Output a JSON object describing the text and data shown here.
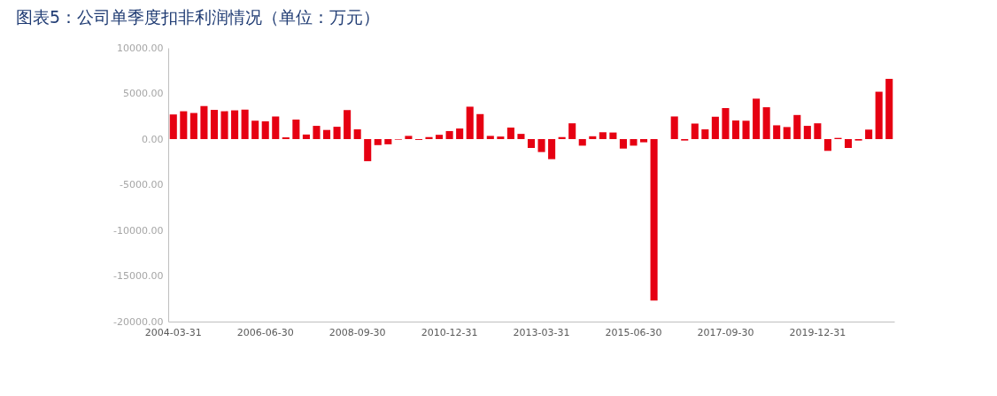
{
  "chart_data": {
    "type": "bar",
    "title": "图表5：公司单季度扣非利润情况（单位：万元）",
    "categories": [
      "2004-03-31",
      null,
      null,
      null,
      null,
      null,
      null,
      null,
      null,
      "2006-06-30",
      null,
      null,
      null,
      null,
      null,
      null,
      null,
      null,
      "2008-09-30",
      null,
      null,
      null,
      null,
      null,
      null,
      null,
      null,
      "2010-12-31",
      null,
      null,
      null,
      null,
      null,
      null,
      null,
      null,
      "2013-03-31",
      null,
      null,
      null,
      null,
      null,
      null,
      null,
      null,
      "2015-06-30",
      null,
      null,
      null,
      null,
      null,
      null,
      null,
      null,
      "2017-09-30",
      null,
      null,
      null,
      null,
      null,
      null,
      null,
      null,
      "2019-12-31",
      null,
      null,
      null,
      null,
      null,
      null,
      null
    ],
    "values": [
      2700,
      3050,
      2860,
      3620,
      3200,
      3050,
      3150,
      3240,
      2010,
      1950,
      2480,
      190,
      2140,
      500,
      1450,
      1000,
      1350,
      3180,
      1070,
      -2420,
      -660,
      -570,
      -60,
      350,
      -90,
      220,
      470,
      880,
      1160,
      3550,
      2740,
      350,
      280,
      1260,
      570,
      -970,
      -1420,
      -2200,
      220,
      1730,
      -720,
      310,
      750,
      720,
      -1040,
      -720,
      -350,
      -17700,
      null,
      2480,
      -160,
      1700,
      1070,
      2450,
      3400,
      2040,
      2010,
      4430,
      3490,
      1510,
      1320,
      2640,
      1450,
      1730,
      -1290,
      130,
      -970,
      -160,
      1040,
      5190,
      6600
    ],
    "color": "#e60012",
    "ylim": [
      -20000,
      10000
    ],
    "yticks": [
      {
        "value": -20000,
        "label": "-20000.00"
      },
      {
        "value": -15000,
        "label": "-15000.00"
      },
      {
        "value": -10000,
        "label": "-10000.00"
      },
      {
        "value": -5000,
        "label": "-5000.00"
      },
      {
        "value": 0,
        "label": "0.00"
      },
      {
        "value": 5000,
        "label": "5000.00"
      },
      {
        "value": 10000,
        "label": "10000.00"
      }
    ],
    "grid": false
  }
}
